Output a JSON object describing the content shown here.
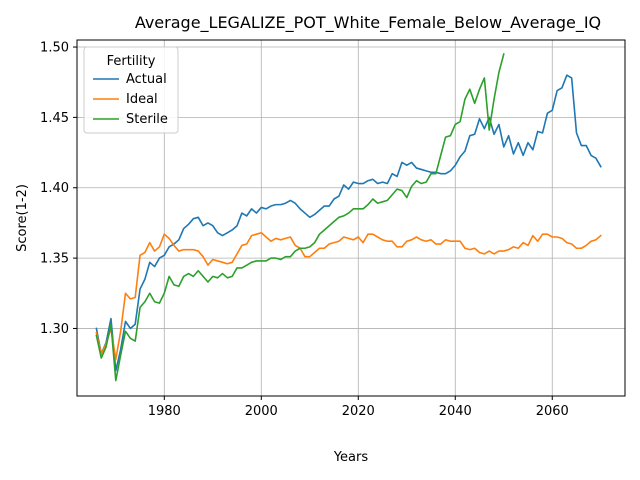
{
  "chart_data": {
    "type": "line",
    "title": "Average_LEGALIZE_POT_White_Female_Below_Average_IQ",
    "xlabel": "Years",
    "ylabel": "Score(1-2)",
    "xlim": [
      1962,
      2075
    ],
    "ylim": [
      1.252,
      1.505
    ],
    "xticks": [
      1980,
      2000,
      2020,
      2040,
      2060
    ],
    "yticks": [
      1.3,
      1.35,
      1.4,
      1.45,
      1.5
    ],
    "ytick_labels": [
      "1.30",
      "1.35",
      "1.40",
      "1.45",
      "1.50"
    ],
    "grid": true,
    "legend": {
      "title": "Fertility",
      "placement": "upper-left"
    },
    "series": [
      {
        "name": "Actual",
        "color": "#1f77b4",
        "points": [
          [
            1966,
            1.3
          ],
          [
            1967,
            1.282
          ],
          [
            1968,
            1.29
          ],
          [
            1969,
            1.307
          ],
          [
            1970,
            1.27
          ],
          [
            1971,
            1.285
          ],
          [
            1972,
            1.305
          ],
          [
            1973,
            1.3
          ],
          [
            1974,
            1.303
          ],
          [
            1975,
            1.328
          ],
          [
            1976,
            1.335
          ],
          [
            1977,
            1.347
          ],
          [
            1978,
            1.344
          ],
          [
            1979,
            1.35
          ],
          [
            1980,
            1.352
          ],
          [
            1981,
            1.358
          ],
          [
            1982,
            1.36
          ],
          [
            1983,
            1.363
          ],
          [
            1984,
            1.371
          ],
          [
            1985,
            1.374
          ],
          [
            1986,
            1.378
          ],
          [
            1987,
            1.379
          ],
          [
            1988,
            1.373
          ],
          [
            1989,
            1.375
          ],
          [
            1990,
            1.373
          ],
          [
            1991,
            1.368
          ],
          [
            1992,
            1.366
          ],
          [
            1993,
            1.368
          ],
          [
            1994,
            1.37
          ],
          [
            1995,
            1.373
          ],
          [
            1996,
            1.382
          ],
          [
            1997,
            1.38
          ],
          [
            1998,
            1.385
          ],
          [
            1999,
            1.382
          ],
          [
            2000,
            1.386
          ],
          [
            2001,
            1.385
          ],
          [
            2002,
            1.387
          ],
          [
            2003,
            1.388
          ],
          [
            2004,
            1.388
          ],
          [
            2005,
            1.389
          ],
          [
            2006,
            1.391
          ],
          [
            2007,
            1.389
          ],
          [
            2008,
            1.385
          ],
          [
            2009,
            1.382
          ],
          [
            2010,
            1.379
          ],
          [
            2011,
            1.381
          ],
          [
            2012,
            1.384
          ],
          [
            2013,
            1.387
          ],
          [
            2014,
            1.387
          ],
          [
            2015,
            1.392
          ],
          [
            2016,
            1.394
          ],
          [
            2017,
            1.402
          ],
          [
            2018,
            1.399
          ],
          [
            2019,
            1.404
          ],
          [
            2020,
            1.403
          ],
          [
            2021,
            1.403
          ],
          [
            2022,
            1.405
          ],
          [
            2023,
            1.406
          ],
          [
            2024,
            1.403
          ],
          [
            2025,
            1.404
          ],
          [
            2026,
            1.403
          ],
          [
            2027,
            1.41
          ],
          [
            2028,
            1.408
          ],
          [
            2029,
            1.418
          ],
          [
            2030,
            1.416
          ],
          [
            2031,
            1.418
          ],
          [
            2032,
            1.414
          ],
          [
            2033,
            1.413
          ],
          [
            2034,
            1.412
          ],
          [
            2035,
            1.411
          ],
          [
            2036,
            1.411
          ],
          [
            2037,
            1.41
          ],
          [
            2038,
            1.41
          ],
          [
            2039,
            1.412
          ],
          [
            2040,
            1.416
          ],
          [
            2041,
            1.422
          ],
          [
            2042,
            1.426
          ],
          [
            2043,
            1.437
          ],
          [
            2044,
            1.438
          ],
          [
            2045,
            1.449
          ],
          [
            2046,
            1.442
          ],
          [
            2047,
            1.45
          ],
          [
            2048,
            1.438
          ],
          [
            2049,
            1.445
          ],
          [
            2050,
            1.429
          ],
          [
            2051,
            1.437
          ],
          [
            2052,
            1.424
          ],
          [
            2053,
            1.432
          ],
          [
            2054,
            1.423
          ],
          [
            2055,
            1.432
          ],
          [
            2056,
            1.427
          ],
          [
            2057,
            1.44
          ],
          [
            2058,
            1.439
          ],
          [
            2059,
            1.453
          ],
          [
            2060,
            1.455
          ],
          [
            2061,
            1.469
          ],
          [
            2062,
            1.471
          ],
          [
            2063,
            1.48
          ],
          [
            2064,
            1.478
          ],
          [
            2065,
            1.439
          ],
          [
            2066,
            1.43
          ],
          [
            2067,
            1.43
          ],
          [
            2068,
            1.423
          ],
          [
            2069,
            1.421
          ],
          [
            2070,
            1.415
          ]
        ]
      },
      {
        "name": "Ideal",
        "color": "#ff7f0e",
        "points": [
          [
            1966,
            1.297
          ],
          [
            1967,
            1.282
          ],
          [
            1968,
            1.289
          ],
          [
            1969,
            1.3
          ],
          [
            1970,
            1.278
          ],
          [
            1971,
            1.298
          ],
          [
            1972,
            1.325
          ],
          [
            1973,
            1.321
          ],
          [
            1974,
            1.322
          ],
          [
            1975,
            1.352
          ],
          [
            1976,
            1.354
          ],
          [
            1977,
            1.361
          ],
          [
            1978,
            1.355
          ],
          [
            1979,
            1.358
          ],
          [
            1980,
            1.367
          ],
          [
            1981,
            1.364
          ],
          [
            1982,
            1.359
          ],
          [
            1983,
            1.355
          ],
          [
            1984,
            1.356
          ],
          [
            1985,
            1.356
          ],
          [
            1986,
            1.356
          ],
          [
            1987,
            1.355
          ],
          [
            1988,
            1.351
          ],
          [
            1989,
            1.345
          ],
          [
            1990,
            1.349
          ],
          [
            1991,
            1.348
          ],
          [
            1992,
            1.347
          ],
          [
            1993,
            1.346
          ],
          [
            1994,
            1.347
          ],
          [
            1995,
            1.353
          ],
          [
            1996,
            1.359
          ],
          [
            1997,
            1.36
          ],
          [
            1998,
            1.366
          ],
          [
            1999,
            1.367
          ],
          [
            2000,
            1.368
          ],
          [
            2001,
            1.365
          ],
          [
            2002,
            1.362
          ],
          [
            2003,
            1.364
          ],
          [
            2004,
            1.363
          ],
          [
            2005,
            1.364
          ],
          [
            2006,
            1.365
          ],
          [
            2007,
            1.359
          ],
          [
            2008,
            1.357
          ],
          [
            2009,
            1.351
          ],
          [
            2010,
            1.351
          ],
          [
            2011,
            1.354
          ],
          [
            2012,
            1.357
          ],
          [
            2013,
            1.357
          ],
          [
            2014,
            1.36
          ],
          [
            2015,
            1.361
          ],
          [
            2016,
            1.362
          ],
          [
            2017,
            1.365
          ],
          [
            2018,
            1.364
          ],
          [
            2019,
            1.363
          ],
          [
            2020,
            1.365
          ],
          [
            2021,
            1.361
          ],
          [
            2022,
            1.367
          ],
          [
            2023,
            1.367
          ],
          [
            2024,
            1.365
          ],
          [
            2025,
            1.363
          ],
          [
            2026,
            1.362
          ],
          [
            2027,
            1.362
          ],
          [
            2028,
            1.358
          ],
          [
            2029,
            1.358
          ],
          [
            2030,
            1.362
          ],
          [
            2031,
            1.363
          ],
          [
            2032,
            1.365
          ],
          [
            2033,
            1.363
          ],
          [
            2034,
            1.362
          ],
          [
            2035,
            1.363
          ],
          [
            2036,
            1.36
          ],
          [
            2037,
            1.36
          ],
          [
            2038,
            1.363
          ],
          [
            2039,
            1.362
          ],
          [
            2040,
            1.362
          ],
          [
            2041,
            1.362
          ],
          [
            2042,
            1.357
          ],
          [
            2043,
            1.356
          ],
          [
            2044,
            1.357
          ],
          [
            2045,
            1.354
          ],
          [
            2046,
            1.353
          ],
          [
            2047,
            1.355
          ],
          [
            2048,
            1.353
          ],
          [
            2049,
            1.355
          ],
          [
            2050,
            1.355
          ],
          [
            2051,
            1.356
          ],
          [
            2052,
            1.358
          ],
          [
            2053,
            1.357
          ],
          [
            2054,
            1.361
          ],
          [
            2055,
            1.359
          ],
          [
            2056,
            1.366
          ],
          [
            2057,
            1.362
          ],
          [
            2058,
            1.367
          ],
          [
            2059,
            1.367
          ],
          [
            2060,
            1.365
          ],
          [
            2061,
            1.365
          ],
          [
            2062,
            1.364
          ],
          [
            2063,
            1.361
          ],
          [
            2064,
            1.36
          ],
          [
            2065,
            1.357
          ],
          [
            2066,
            1.357
          ],
          [
            2067,
            1.359
          ],
          [
            2068,
            1.362
          ],
          [
            2069,
            1.363
          ],
          [
            2070,
            1.366
          ]
        ]
      },
      {
        "name": "Sterile",
        "color": "#2ca02c",
        "points": [
          [
            1966,
            1.295
          ],
          [
            1967,
            1.279
          ],
          [
            1968,
            1.287
          ],
          [
            1969,
            1.303
          ],
          [
            1970,
            1.263
          ],
          [
            1971,
            1.281
          ],
          [
            1972,
            1.298
          ],
          [
            1973,
            1.293
          ],
          [
            1974,
            1.291
          ],
          [
            1975,
            1.315
          ],
          [
            1976,
            1.319
          ],
          [
            1977,
            1.325
          ],
          [
            1978,
            1.319
          ],
          [
            1979,
            1.318
          ],
          [
            1980,
            1.325
          ],
          [
            1981,
            1.337
          ],
          [
            1982,
            1.331
          ],
          [
            1983,
            1.33
          ],
          [
            1984,
            1.337
          ],
          [
            1985,
            1.339
          ],
          [
            1986,
            1.337
          ],
          [
            1987,
            1.341
          ],
          [
            1988,
            1.337
          ],
          [
            1989,
            1.333
          ],
          [
            1990,
            1.337
          ],
          [
            1991,
            1.336
          ],
          [
            1992,
            1.339
          ],
          [
            1993,
            1.336
          ],
          [
            1994,
            1.337
          ],
          [
            1995,
            1.343
          ],
          [
            1996,
            1.343
          ],
          [
            1997,
            1.345
          ],
          [
            1998,
            1.347
          ],
          [
            1999,
            1.348
          ],
          [
            2000,
            1.348
          ],
          [
            2001,
            1.348
          ],
          [
            2002,
            1.35
          ],
          [
            2003,
            1.35
          ],
          [
            2004,
            1.349
          ],
          [
            2005,
            1.351
          ],
          [
            2006,
            1.351
          ],
          [
            2007,
            1.355
          ],
          [
            2008,
            1.357
          ],
          [
            2009,
            1.357
          ],
          [
            2010,
            1.358
          ],
          [
            2011,
            1.361
          ],
          [
            2012,
            1.367
          ],
          [
            2013,
            1.37
          ],
          [
            2014,
            1.373
          ],
          [
            2015,
            1.376
          ],
          [
            2016,
            1.379
          ],
          [
            2017,
            1.38
          ],
          [
            2018,
            1.382
          ],
          [
            2019,
            1.385
          ],
          [
            2020,
            1.385
          ],
          [
            2021,
            1.385
          ],
          [
            2022,
            1.388
          ],
          [
            2023,
            1.392
          ],
          [
            2024,
            1.389
          ],
          [
            2025,
            1.39
          ],
          [
            2026,
            1.391
          ],
          [
            2027,
            1.395
          ],
          [
            2028,
            1.399
          ],
          [
            2029,
            1.398
          ],
          [
            2030,
            1.393
          ],
          [
            2031,
            1.401
          ],
          [
            2032,
            1.405
          ],
          [
            2033,
            1.403
          ],
          [
            2034,
            1.404
          ],
          [
            2035,
            1.41
          ],
          [
            2036,
            1.41
          ],
          [
            2037,
            1.423
          ],
          [
            2038,
            1.436
          ],
          [
            2039,
            1.437
          ],
          [
            2040,
            1.445
          ],
          [
            2041,
            1.447
          ],
          [
            2042,
            1.463
          ],
          [
            2043,
            1.47
          ],
          [
            2044,
            1.46
          ],
          [
            2045,
            1.47
          ],
          [
            2046,
            1.478
          ],
          [
            2047,
            1.441
          ],
          [
            2048,
            1.463
          ],
          [
            2049,
            1.482
          ],
          [
            2050,
            1.495
          ]
        ]
      }
    ]
  }
}
